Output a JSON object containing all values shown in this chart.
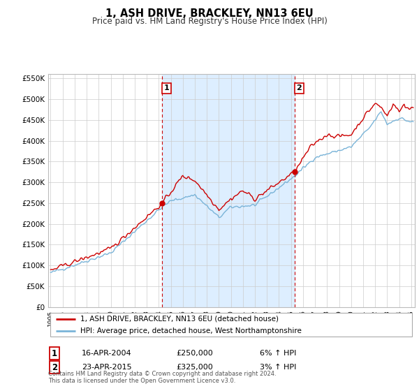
{
  "title": "1, ASH DRIVE, BRACKLEY, NN13 6EU",
  "subtitle": "Price paid vs. HM Land Registry's House Price Index (HPI)",
  "legend_line1": "1, ASH DRIVE, BRACKLEY, NN13 6EU (detached house)",
  "legend_line2": "HPI: Average price, detached house, West Northamptonshire",
  "footnote": "Contains HM Land Registry data © Crown copyright and database right 2024.\nThis data is licensed under the Open Government Licence v3.0.",
  "transaction1_label": "1",
  "transaction1_date": "16-APR-2004",
  "transaction1_price": "£250,000",
  "transaction1_hpi": "6% ↑ HPI",
  "transaction2_label": "2",
  "transaction2_date": "23-APR-2015",
  "transaction2_price": "£325,000",
  "transaction2_hpi": "3% ↑ HPI",
  "hpi_color": "#7ab4d8",
  "price_color": "#cc0000",
  "shade_color": "#ddeeff",
  "marker_color": "#cc0000",
  "dashed_color": "#cc0000",
  "background_color": "#ffffff",
  "grid_color": "#cccccc",
  "ylim": [
    0,
    560000
  ],
  "yticks": [
    0,
    50000,
    100000,
    150000,
    200000,
    250000,
    300000,
    350000,
    400000,
    450000,
    500000,
    550000
  ],
  "xlim_start": 1994.8,
  "xlim_end": 2025.3,
  "xticks": [
    1995,
    1996,
    1997,
    1998,
    1999,
    2000,
    2001,
    2002,
    2003,
    2004,
    2005,
    2006,
    2007,
    2008,
    2009,
    2010,
    2011,
    2012,
    2013,
    2014,
    2015,
    2016,
    2017,
    2018,
    2019,
    2020,
    2021,
    2022,
    2023,
    2024,
    2025
  ],
  "sale1_x": 2004.29,
  "sale1_y": 250000,
  "sale2_x": 2015.31,
  "sale2_y": 325000
}
